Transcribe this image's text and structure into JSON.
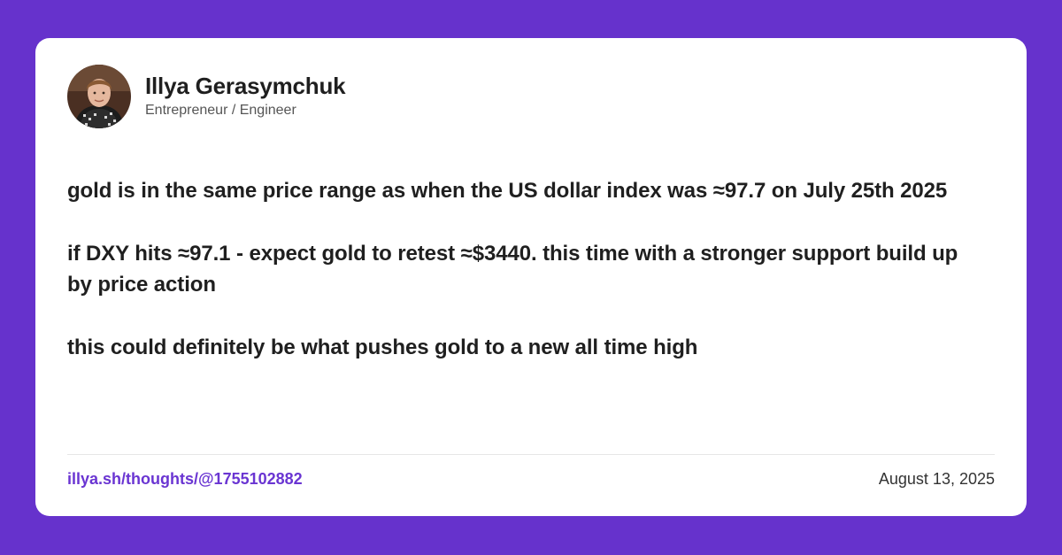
{
  "author": {
    "name": "Illya Gerasymchuk",
    "title": "Entrepreneur / Engineer",
    "avatar_icon": "profile-photo"
  },
  "post": {
    "paragraphs": [
      "gold is in the same price range as when the US dollar index was ≈97.7 on July 25th 2025",
      "if DXY hits ≈97.1 - expect gold to retest ≈$3440. this time with a stronger support build up by price action",
      "this could definitely be what pushes gold to a new all time high"
    ]
  },
  "footer": {
    "link": "illya.sh/thoughts/@1755102882",
    "date": "August 13, 2025"
  },
  "colors": {
    "background": "#6632cc",
    "card": "#ffffff",
    "link": "#6a35d2",
    "text": "#1f1f1f"
  }
}
